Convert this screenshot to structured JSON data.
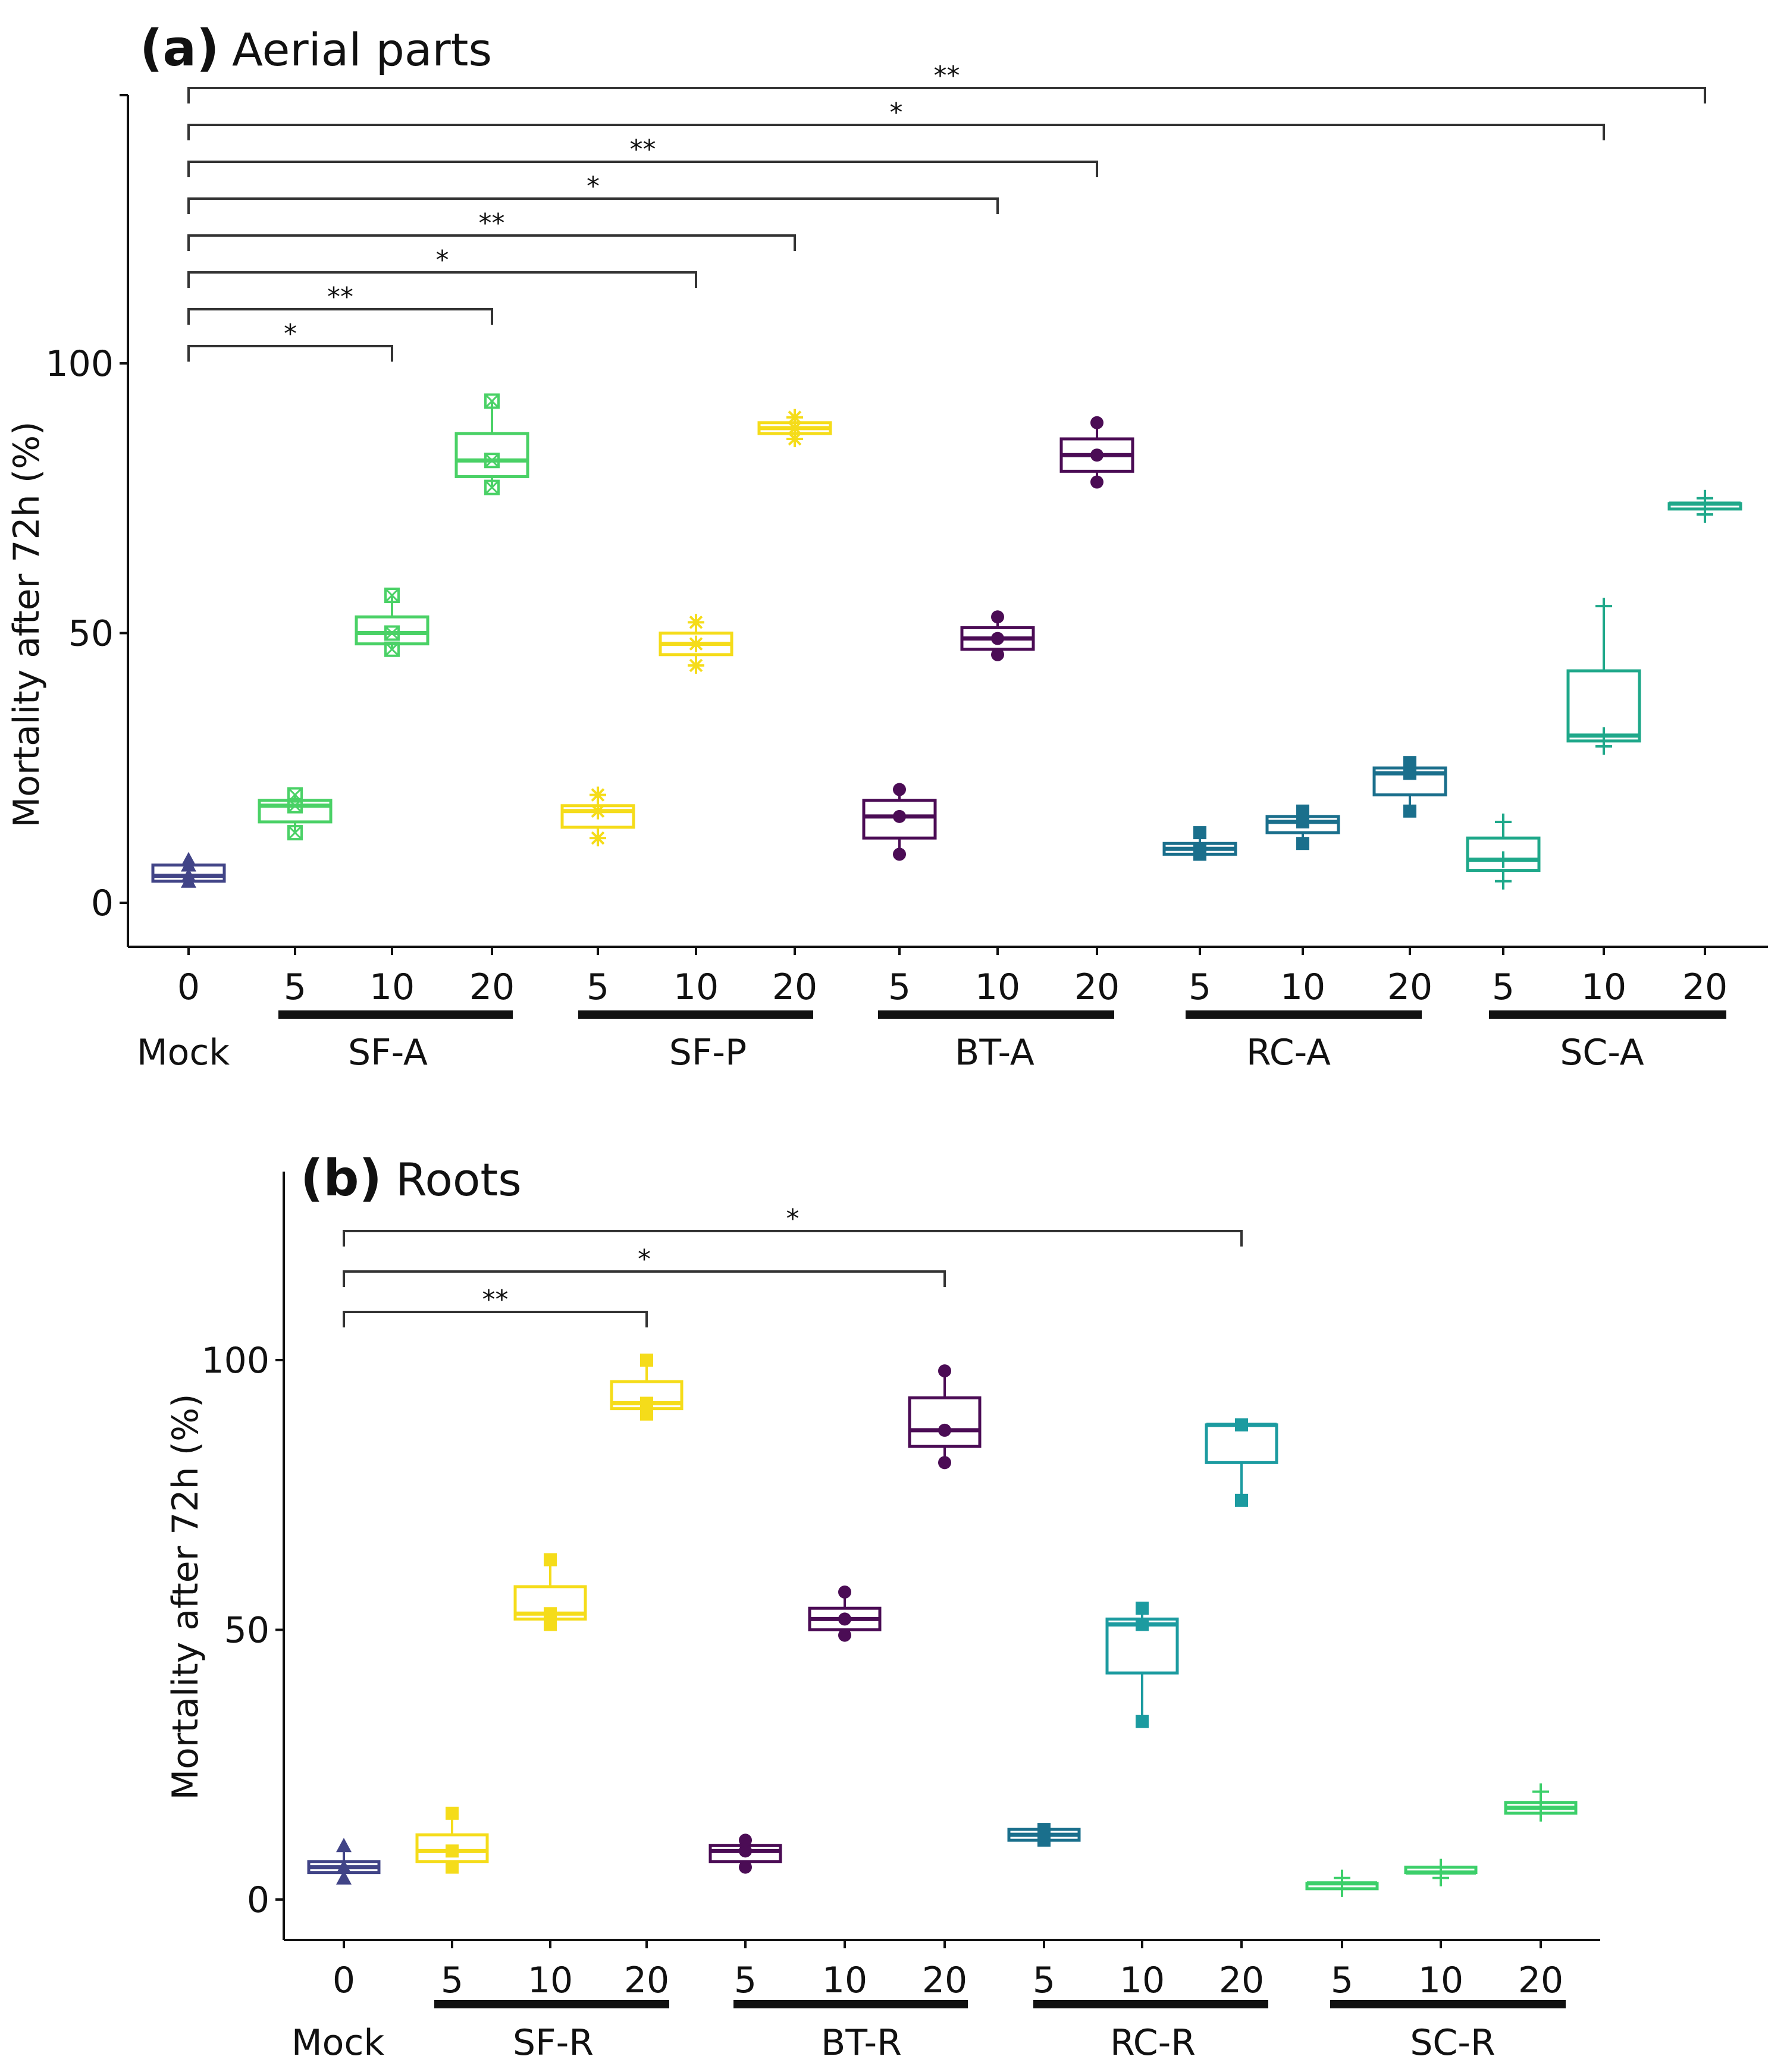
{
  "colors": {
    "mock": "#414487",
    "sf_a": "#4ad166",
    "sf_p": "#f5dc1a",
    "bt": "#4b0c55",
    "rc": "#1a6f8c",
    "sc_a": "#1fa88a",
    "sf_r": "#f5dc1a",
    "rc_r": "#1c9ba0",
    "sc_r": "#3ccf6a",
    "axis": "#111111",
    "bracket": "#333333"
  },
  "chart_data": [
    {
      "type": "box",
      "panel_letter": "(a)",
      "title": "Aerial parts",
      "ylabel": "Mortality after 72h (%)",
      "ylim": [
        -8,
        150
      ],
      "yticks": [
        0,
        50,
        100
      ],
      "ytick_labels": [
        "0",
        "50",
        "100"
      ],
      "grid": false,
      "boxes": [
        {
          "x_label": "0",
          "group": "Mock",
          "color_key": "mock",
          "marker": "triangle",
          "min": 4,
          "q1": 4,
          "median": 5,
          "q3": 7,
          "max": 8,
          "points": [
            4,
            5,
            7,
            8
          ]
        },
        {
          "x_label": "5",
          "group": "SF-A",
          "color_key": "sf_a",
          "marker": "square-x",
          "min": 13,
          "q1": 15,
          "median": 18,
          "q3": 19,
          "max": 20,
          "points": [
            13,
            18,
            20
          ]
        },
        {
          "x_label": "10",
          "group": "SF-A",
          "color_key": "sf_a",
          "marker": "square-x",
          "min": 47,
          "q1": 48,
          "median": 50,
          "q3": 53,
          "max": 57,
          "points": [
            47,
            50,
            57
          ]
        },
        {
          "x_label": "20",
          "group": "SF-A",
          "color_key": "sf_a",
          "marker": "square-x",
          "min": 77,
          "q1": 79,
          "median": 82,
          "q3": 87,
          "max": 93,
          "points": [
            77,
            82,
            93
          ]
        },
        {
          "x_label": "5",
          "group": "SF-P",
          "color_key": "sf_p",
          "marker": "asterisk",
          "min": 12,
          "q1": 14,
          "median": 17,
          "q3": 18,
          "max": 20,
          "points": [
            12,
            17,
            20
          ]
        },
        {
          "x_label": "10",
          "group": "SF-P",
          "color_key": "sf_p",
          "marker": "asterisk",
          "min": 44,
          "q1": 46,
          "median": 48,
          "q3": 50,
          "max": 52,
          "points": [
            44,
            48,
            52
          ]
        },
        {
          "x_label": "20",
          "group": "SF-P",
          "color_key": "sf_p",
          "marker": "asterisk",
          "min": 86,
          "q1": 87,
          "median": 88,
          "q3": 89,
          "max": 90,
          "points": [
            86,
            88,
            90
          ]
        },
        {
          "x_label": "5",
          "group": "BT-A",
          "color_key": "bt",
          "marker": "circle",
          "min": 9,
          "q1": 12,
          "median": 16,
          "q3": 19,
          "max": 21,
          "points": [
            9,
            16,
            21
          ]
        },
        {
          "x_label": "10",
          "group": "BT-A",
          "color_key": "bt",
          "marker": "circle",
          "min": 46,
          "q1": 47,
          "median": 49,
          "q3": 51,
          "max": 53,
          "points": [
            46,
            49,
            53
          ]
        },
        {
          "x_label": "20",
          "group": "BT-A",
          "color_key": "bt",
          "marker": "circle",
          "min": 78,
          "q1": 80,
          "median": 83,
          "q3": 86,
          "max": 89,
          "points": [
            78,
            83,
            89
          ]
        },
        {
          "x_label": "5",
          "group": "RC-A",
          "color_key": "rc",
          "marker": "square",
          "min": 9,
          "q1": 9,
          "median": 10,
          "q3": 11,
          "max": 13,
          "points": [
            9,
            10,
            13
          ]
        },
        {
          "x_label": "10",
          "group": "RC-A",
          "color_key": "rc",
          "marker": "square",
          "min": 11,
          "q1": 13,
          "median": 15,
          "q3": 16,
          "max": 17,
          "points": [
            11,
            15,
            17
          ]
        },
        {
          "x_label": "20",
          "group": "RC-A",
          "color_key": "rc",
          "marker": "square",
          "min": 17,
          "q1": 20,
          "median": 24,
          "q3": 25,
          "max": 26,
          "points": [
            17,
            24,
            26
          ]
        },
        {
          "x_label": "5",
          "group": "SC-A",
          "color_key": "sc_a",
          "marker": "plus",
          "min": 4,
          "q1": 6,
          "median": 8,
          "q3": 12,
          "max": 15,
          "points": [
            4,
            8,
            15
          ]
        },
        {
          "x_label": "10",
          "group": "SC-A",
          "color_key": "sc_a",
          "marker": "plus",
          "min": 29,
          "q1": 30,
          "median": 31,
          "q3": 43,
          "max": 55,
          "points": [
            29,
            31,
            55
          ]
        },
        {
          "x_label": "20",
          "group": "SC-A",
          "color_key": "sc_a",
          "marker": "plus",
          "min": 72,
          "q1": 73,
          "median": 74,
          "q3": 74,
          "max": 75,
          "points": [
            72,
            74,
            75
          ]
        }
      ],
      "groups": [
        {
          "label": "Mock",
          "underline": false
        },
        {
          "label": "SF-A",
          "underline": true
        },
        {
          "label": "SF-P",
          "underline": true
        },
        {
          "label": "BT-A",
          "underline": true
        },
        {
          "label": "RC-A",
          "underline": true
        },
        {
          "label": "SC-A",
          "underline": true
        }
      ],
      "significance": [
        {
          "from": 0,
          "to": 2,
          "label": "*"
        },
        {
          "from": 0,
          "to": 3,
          "label": "**"
        },
        {
          "from": 0,
          "to": 5,
          "label": "*"
        },
        {
          "from": 0,
          "to": 6,
          "label": "**"
        },
        {
          "from": 0,
          "to": 8,
          "label": "*"
        },
        {
          "from": 0,
          "to": 9,
          "label": "**"
        },
        {
          "from": 0,
          "to": 14,
          "label": "*"
        },
        {
          "from": 0,
          "to": 15,
          "label": "**"
        }
      ]
    },
    {
      "type": "box",
      "panel_letter": "(b)",
      "title": "Roots",
      "ylabel": "Mortality after 72h (%)",
      "ylim": [
        -7,
        133
      ],
      "yticks": [
        0,
        50,
        100
      ],
      "ytick_labels": [
        "0",
        "50",
        "100"
      ],
      "grid": false,
      "boxes": [
        {
          "x_label": "0",
          "group": "Mock",
          "color_key": "mock",
          "marker": "triangle",
          "min": 4,
          "q1": 5,
          "median": 6,
          "q3": 7,
          "max": 10,
          "points": [
            4,
            6,
            10
          ]
        },
        {
          "x_label": "5",
          "group": "SF-R",
          "color_key": "sf_r",
          "marker": "square",
          "min": 6,
          "q1": 7,
          "median": 9,
          "q3": 12,
          "max": 16,
          "points": [
            6,
            9,
            16
          ]
        },
        {
          "x_label": "10",
          "group": "SF-R",
          "color_key": "sf_r",
          "marker": "square",
          "min": 51,
          "q1": 52,
          "median": 53,
          "q3": 58,
          "max": 63,
          "points": [
            51,
            53,
            63
          ]
        },
        {
          "x_label": "20",
          "group": "SF-R",
          "color_key": "sf_r",
          "marker": "square",
          "min": 90,
          "q1": 91,
          "median": 92,
          "q3": 96,
          "max": 100,
          "points": [
            90,
            92,
            100
          ]
        },
        {
          "x_label": "5",
          "group": "BT-R",
          "color_key": "bt",
          "marker": "circle",
          "min": 6,
          "q1": 7,
          "median": 9,
          "q3": 10,
          "max": 11,
          "points": [
            6,
            9,
            11
          ]
        },
        {
          "x_label": "10",
          "group": "BT-R",
          "color_key": "bt",
          "marker": "circle",
          "min": 49,
          "q1": 50,
          "median": 52,
          "q3": 54,
          "max": 57,
          "points": [
            49,
            52,
            57
          ]
        },
        {
          "x_label": "20",
          "group": "BT-R",
          "color_key": "bt",
          "marker": "circle",
          "min": 81,
          "q1": 84,
          "median": 87,
          "q3": 93,
          "max": 98,
          "points": [
            81,
            87,
            98
          ]
        },
        {
          "x_label": "5",
          "group": "RC-R",
          "color_key": "rc",
          "marker": "square",
          "min": 11,
          "q1": 11,
          "median": 12,
          "q3": 13,
          "max": 13,
          "points": [
            11,
            12,
            13
          ]
        },
        {
          "x_label": "10",
          "group": "RC-R",
          "color_key": "rc_r",
          "marker": "square",
          "min": 33,
          "q1": 42,
          "median": 51,
          "q3": 52,
          "max": 54,
          "points": [
            33,
            51,
            54
          ]
        },
        {
          "x_label": "20",
          "group": "RC-R",
          "color_key": "rc_r",
          "marker": "square",
          "min": 74,
          "q1": 81,
          "median": 88,
          "q3": 88,
          "max": 88,
          "points": [
            74,
            88
          ]
        },
        {
          "x_label": "5",
          "group": "SC-R",
          "color_key": "sc_r",
          "marker": "plus",
          "min": 2,
          "q1": 2,
          "median": 3,
          "q3": 3,
          "max": 4,
          "points": [
            2,
            3,
            4
          ]
        },
        {
          "x_label": "10",
          "group": "SC-R",
          "color_key": "sc_r",
          "marker": "plus",
          "min": 4,
          "q1": 5,
          "median": 5,
          "q3": 6,
          "max": 6,
          "points": [
            4,
            5,
            6
          ]
        },
        {
          "x_label": "20",
          "group": "SC-R",
          "color_key": "sc_r",
          "marker": "plus",
          "min": 16,
          "q1": 16,
          "median": 17,
          "q3": 18,
          "max": 20,
          "points": [
            16,
            17,
            20
          ]
        }
      ],
      "groups": [
        {
          "label": "Mock",
          "underline": false
        },
        {
          "label": "SF-R",
          "underline": true
        },
        {
          "label": "BT-R",
          "underline": true
        },
        {
          "label": "RC-R",
          "underline": true
        },
        {
          "label": "SC-R",
          "underline": true
        }
      ],
      "significance": [
        {
          "from": 0,
          "to": 3,
          "label": "**"
        },
        {
          "from": 0,
          "to": 6,
          "label": "*"
        },
        {
          "from": 0,
          "to": 9,
          "label": "*"
        }
      ]
    }
  ]
}
